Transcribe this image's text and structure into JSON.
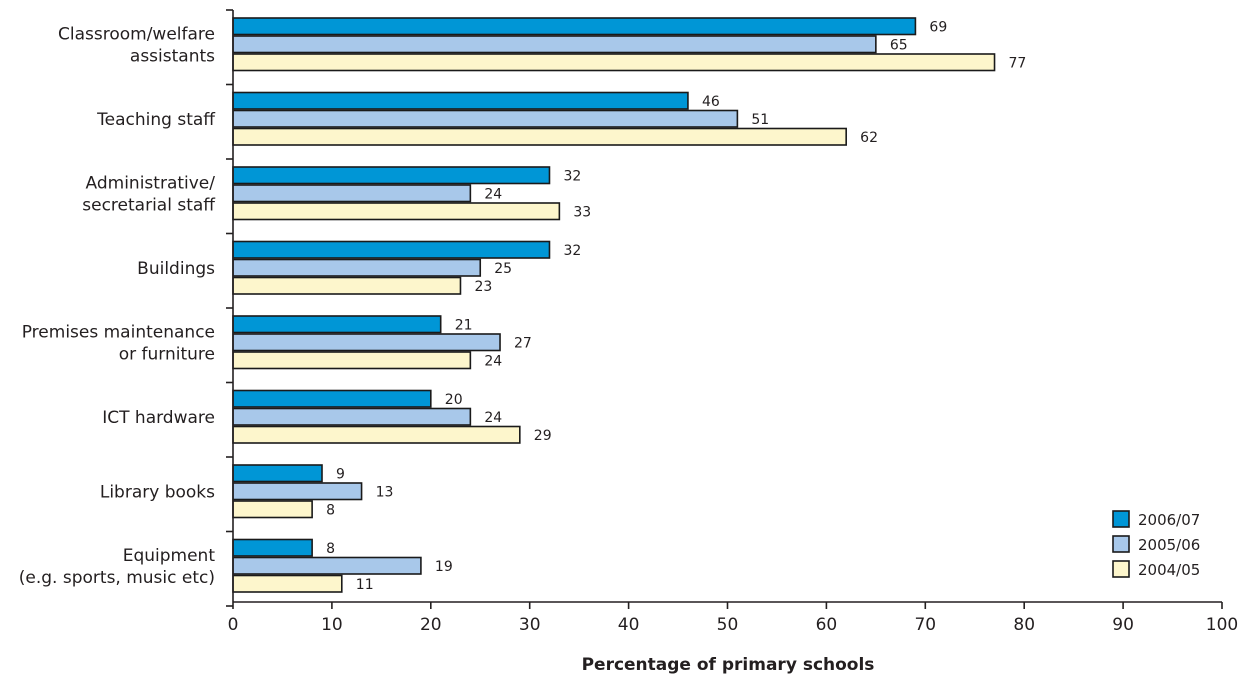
{
  "chart_data": {
    "type": "bar",
    "orientation": "horizontal",
    "title": "",
    "xlabel": "Percentage of primary schools",
    "ylabel": "",
    "xlim": [
      0,
      100
    ],
    "x_ticks": [
      "0",
      "10",
      "20",
      "30",
      "40",
      "50",
      "60",
      "70",
      "80",
      "90",
      "100"
    ],
    "categories": [
      [
        "Classroom/welfare",
        "assistants"
      ],
      [
        "Teaching staff"
      ],
      [
        "Administrative/",
        "secretarial staff"
      ],
      [
        "Buildings"
      ],
      [
        "Premises maintenance",
        "or furniture"
      ],
      [
        "ICT hardware"
      ],
      [
        "Library books"
      ],
      [
        "Equipment",
        "(e.g. sports, music etc)"
      ]
    ],
    "series": [
      {
        "name": "2006/07",
        "color": "#0096d6",
        "values": [
          69,
          46,
          32,
          32,
          21,
          20,
          9,
          8
        ]
      },
      {
        "name": "2005/06",
        "color": "#a8c8ea",
        "values": [
          65,
          51,
          24,
          25,
          27,
          24,
          13,
          19
        ]
      },
      {
        "name": "2004/05",
        "color": "#fdf6cc",
        "values": [
          77,
          62,
          33,
          23,
          24,
          29,
          8,
          11
        ]
      }
    ],
    "grid": false,
    "legend_position": "bottom-right"
  }
}
